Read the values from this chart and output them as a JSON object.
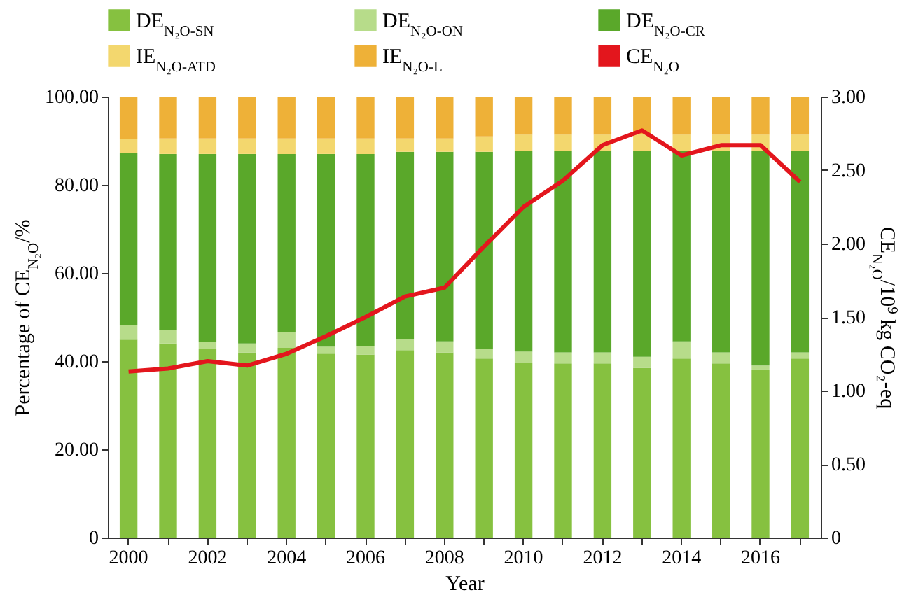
{
  "chart_data": {
    "type": "bar",
    "stacked": true,
    "xlabel": "Year",
    "ylabel": "Percentage of CE$_{N₂O}$/%",
    "y2label": "CE$_{N₂O}$/10$^{9}$ kg CO₂-eq",
    "categories": [
      "2000",
      null,
      "2002",
      null,
      "2004",
      null,
      "2006",
      null,
      "2008",
      null,
      "2010",
      null,
      "2012",
      null,
      "2014",
      null,
      "2016",
      null
    ],
    "series": [
      {
        "name": "DE$_{N₂O-SN}$",
        "color": "#86c140",
        "values": [
          44.9,
          44.0,
          42.8,
          42.0,
          43.0,
          41.7,
          41.5,
          42.5,
          42.0,
          40.6,
          39.6,
          39.5,
          39.5,
          38.5,
          40.6,
          39.5,
          38.1,
          40.6
        ]
      },
      {
        "name": "DE$_{N₂O-ON}$",
        "color": "#b7dc8a",
        "values": [
          3.2,
          3.0,
          1.6,
          2.0,
          3.5,
          1.6,
          2.0,
          2.5,
          2.5,
          2.2,
          2.6,
          2.5,
          2.5,
          2.5,
          3.9,
          2.5,
          0.9,
          1.4
        ]
      },
      {
        "name": "DE$_{N₂O-CR}$",
        "color": "#5aa82a",
        "values": [
          39.1,
          40.0,
          42.6,
          43.0,
          40.5,
          43.7,
          43.5,
          42.5,
          43.0,
          44.7,
          45.5,
          45.7,
          45.7,
          46.7,
          43.2,
          45.7,
          48.7,
          45.7
        ]
      },
      {
        "name": "IE$_{N₂O-ATD}$",
        "color": "#f3d76e",
        "values": [
          3.2,
          3.5,
          3.5,
          3.5,
          3.5,
          3.5,
          3.5,
          3.0,
          3.0,
          3.5,
          3.7,
          3.7,
          3.7,
          3.7,
          3.7,
          3.7,
          3.7,
          3.7
        ]
      },
      {
        "name": "IE$_{N₂O-L}$",
        "color": "#eeb138",
        "values": [
          9.6,
          9.5,
          9.5,
          9.5,
          9.5,
          9.5,
          9.5,
          9.5,
          9.5,
          9.0,
          8.6,
          8.6,
          8.6,
          8.6,
          8.6,
          8.6,
          8.6,
          8.6
        ]
      },
      {
        "name": "CE$_{N₂O}$",
        "type": "line",
        "axis": "y2",
        "color": "#e3161d",
        "values": [
          1.13,
          1.15,
          1.2,
          1.17,
          1.25,
          1.37,
          1.5,
          1.64,
          1.7,
          1.98,
          2.25,
          2.43,
          2.67,
          2.77,
          2.6,
          2.67,
          2.67,
          2.42
        ]
      }
    ],
    "ylim": [
      0,
      100
    ],
    "yticks": [
      {
        "value": 0,
        "label": "0"
      },
      {
        "value": 20,
        "label": "20.00"
      },
      {
        "value": 40,
        "label": "40.00"
      },
      {
        "value": 60,
        "label": "60.00"
      },
      {
        "value": 80,
        "label": "80.00"
      },
      {
        "value": 100,
        "label": "100.00"
      }
    ],
    "y2lim": [
      0,
      3
    ],
    "y2ticks": [
      {
        "value": 0,
        "label": "0"
      },
      {
        "value": 0.5,
        "label": "0.50"
      },
      {
        "value": 1,
        "label": "1.00"
      },
      {
        "value": 1.5,
        "label": "1.50"
      },
      {
        "value": 2,
        "label": "2.00"
      },
      {
        "value": 2.5,
        "label": "2.50"
      },
      {
        "value": 3,
        "label": "3.00"
      }
    ],
    "legend": "top",
    "grid": false,
    "marker": "none",
    "line_style": "solid"
  }
}
